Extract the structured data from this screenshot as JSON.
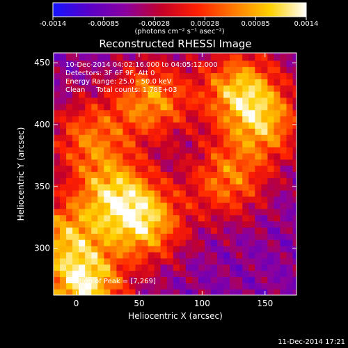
{
  "chart_data": {
    "type": "heatmap",
    "title": "Reconstructed RHESSI Image",
    "xlabel": "Heliocentric X (arcsec)",
    "ylabel": "Heliocentric Y (arcsec)",
    "xlim": [
      -18,
      175
    ],
    "ylim": [
      262,
      458
    ],
    "x_ticks": [
      0,
      50,
      100,
      150
    ],
    "y_ticks": [
      300,
      350,
      400,
      450
    ],
    "colorbar": {
      "range": [
        -0.0014,
        0.0014
      ],
      "tick_labels": [
        "-0.0014",
        "-0.00085",
        "-0.00028",
        "0.00028",
        "0.00085",
        "0.0014"
      ],
      "units": "(photons cm⁻² s⁻¹ asec⁻²)",
      "colormap": "rainbow-blue-purple-red-yellow-white",
      "stops": [
        "#1414ff",
        "#5a00c8",
        "#8a00a0",
        "#c40028",
        "#ff2000",
        "#ff7a00",
        "#ffd000",
        "#ffffff"
      ]
    },
    "annotations": [
      "10-Dec-2014 04:02:16.000 to 04:05:12.000",
      "Detectors: 3F 6F 9F, Att 0",
      "Energy Range: 25.0 - 50.0 keV",
      "Clean     Total counts: 1.78E+03"
    ],
    "peak_label": "Position of Peak = [7,269]",
    "peak": {
      "x": 7,
      "y": 269
    },
    "bright_regions": [
      {
        "x": 7,
        "y": 269,
        "level": 1.0
      },
      {
        "x": 55,
        "y": 320,
        "level": 0.85
      },
      {
        "x": 30,
        "y": 345,
        "level": 0.75
      },
      {
        "x": 130,
        "y": 430,
        "level": 0.8
      },
      {
        "x": 150,
        "y": 400,
        "level": 0.7
      },
      {
        "x": 120,
        "y": 355,
        "level": 0.65
      },
      {
        "x": 60,
        "y": 420,
        "level": 0.75
      },
      {
        "x": -10,
        "y": 310,
        "level": 0.7
      },
      {
        "x": 10,
        "y": 390,
        "level": 0.6
      }
    ]
  },
  "footer_timestamp": "11-Dec-2014 17:21"
}
